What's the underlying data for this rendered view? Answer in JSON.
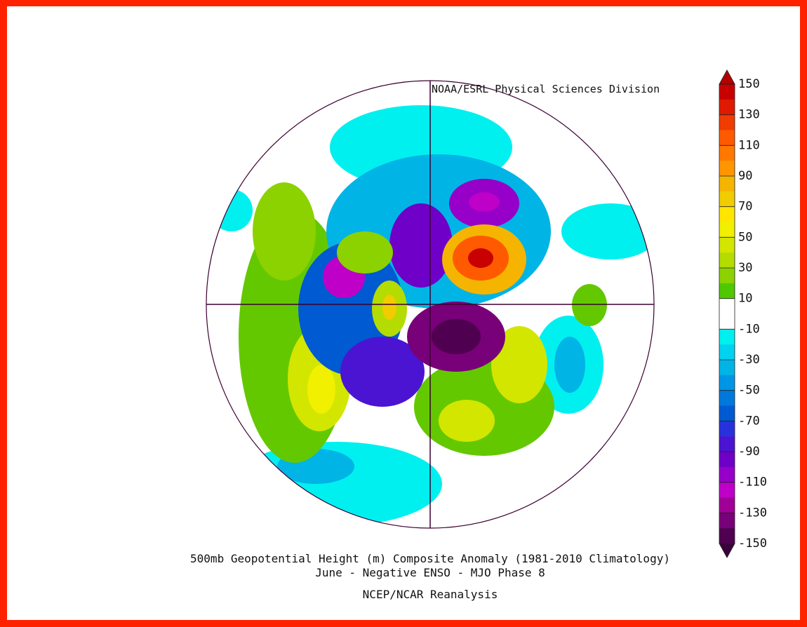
{
  "header": {
    "credit": "NOAA/ESRL Physical Sciences Division"
  },
  "title": {
    "lines": [
      "500mb Geopotential Height (m) Composite Anomaly (1981-2010 Climatology)",
      "June - Negative ENSO - MJO Phase 8"
    ]
  },
  "source": "NCEP/NCAR Reanalysis",
  "colorbar": {
    "range": [
      -150,
      150
    ],
    "ticks": [
      150,
      130,
      110,
      90,
      70,
      50,
      30,
      10,
      -10,
      -30,
      -50,
      -70,
      -90,
      -110,
      -130,
      -150
    ],
    "colors": [
      "#c80000",
      "#e01a00",
      "#f03c00",
      "#ff5a00",
      "#ff7800",
      "#ff9600",
      "#f5b400",
      "#f0cc00",
      "#ffe600",
      "#f0f000",
      "#d2e600",
      "#b4dc00",
      "#8cd200",
      "#50c800",
      "#ffffff",
      "#ffffff",
      "#00f0f0",
      "#00d2f0",
      "#00b4e6",
      "#0096e6",
      "#0078dc",
      "#005ad2",
      "#2832dc",
      "#4b14d2",
      "#6e00c8",
      "#9600c8",
      "#be00c8",
      "#a00096",
      "#780078",
      "#500050"
    ],
    "over_color": "#b40000",
    "under_color": "#3c003c"
  }
}
